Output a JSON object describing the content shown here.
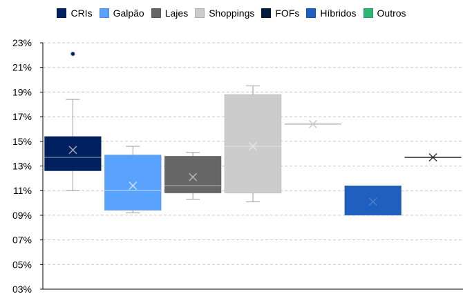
{
  "chart_data": {
    "type": "box",
    "ylim": [
      0.03,
      0.23
    ],
    "yticks": [
      "03%",
      "05%",
      "07%",
      "09%",
      "11%",
      "13%",
      "15%",
      "17%",
      "19%",
      "21%",
      "23%"
    ],
    "ytick_values": [
      0.03,
      0.05,
      0.07,
      0.09,
      0.11,
      0.13,
      0.15,
      0.17,
      0.19,
      0.21,
      0.23
    ],
    "grid": true,
    "legend_position": "top",
    "series": [
      {
        "name": "CRIs",
        "color": "#002060",
        "mean_color": "#9aa3b5",
        "min": 0.11,
        "q1": 0.126,
        "median": 0.137,
        "q3": 0.154,
        "max": 0.184,
        "mean": 0.143,
        "outliers": [
          0.221
        ]
      },
      {
        "name": "Galpão",
        "color": "#5aa2ff",
        "mean_color": "#c8defa",
        "min": 0.092,
        "q1": 0.094,
        "median": 0.11,
        "q3": 0.139,
        "max": 0.146,
        "mean": 0.114,
        "outliers": []
      },
      {
        "name": "Lajes",
        "color": "#666666",
        "mean_color": "#b3b3b3",
        "min": 0.103,
        "q1": 0.108,
        "median": 0.114,
        "q3": 0.138,
        "max": 0.141,
        "mean": 0.121,
        "outliers": []
      },
      {
        "name": "Shoppings",
        "color": "#cccccc",
        "mean_color": "#e4e4e4",
        "min": 0.101,
        "q1": 0.108,
        "median": 0.146,
        "q3": 0.188,
        "max": 0.195,
        "mean": 0.146,
        "outliers": []
      },
      {
        "name": "FOFs",
        "color": "#001b3d",
        "mean_color": "#cccccc",
        "min": 0.164,
        "q1": 0.164,
        "median": 0.164,
        "q3": 0.164,
        "max": 0.164,
        "mean": 0.164,
        "outliers": []
      },
      {
        "name": "Híbridos",
        "color": "#1f5fbf",
        "mean_color": "#4d7fcc",
        "min": 0.09,
        "q1": 0.09,
        "median": 0.09,
        "q3": 0.114,
        "max": 0.114,
        "mean": 0.101,
        "outliers": []
      },
      {
        "name": "Outros",
        "color": "#2bb673",
        "mean_color": "#333333",
        "min": 0.137,
        "q1": 0.137,
        "median": 0.137,
        "q3": 0.137,
        "max": 0.137,
        "mean": 0.137,
        "outliers": []
      }
    ]
  }
}
